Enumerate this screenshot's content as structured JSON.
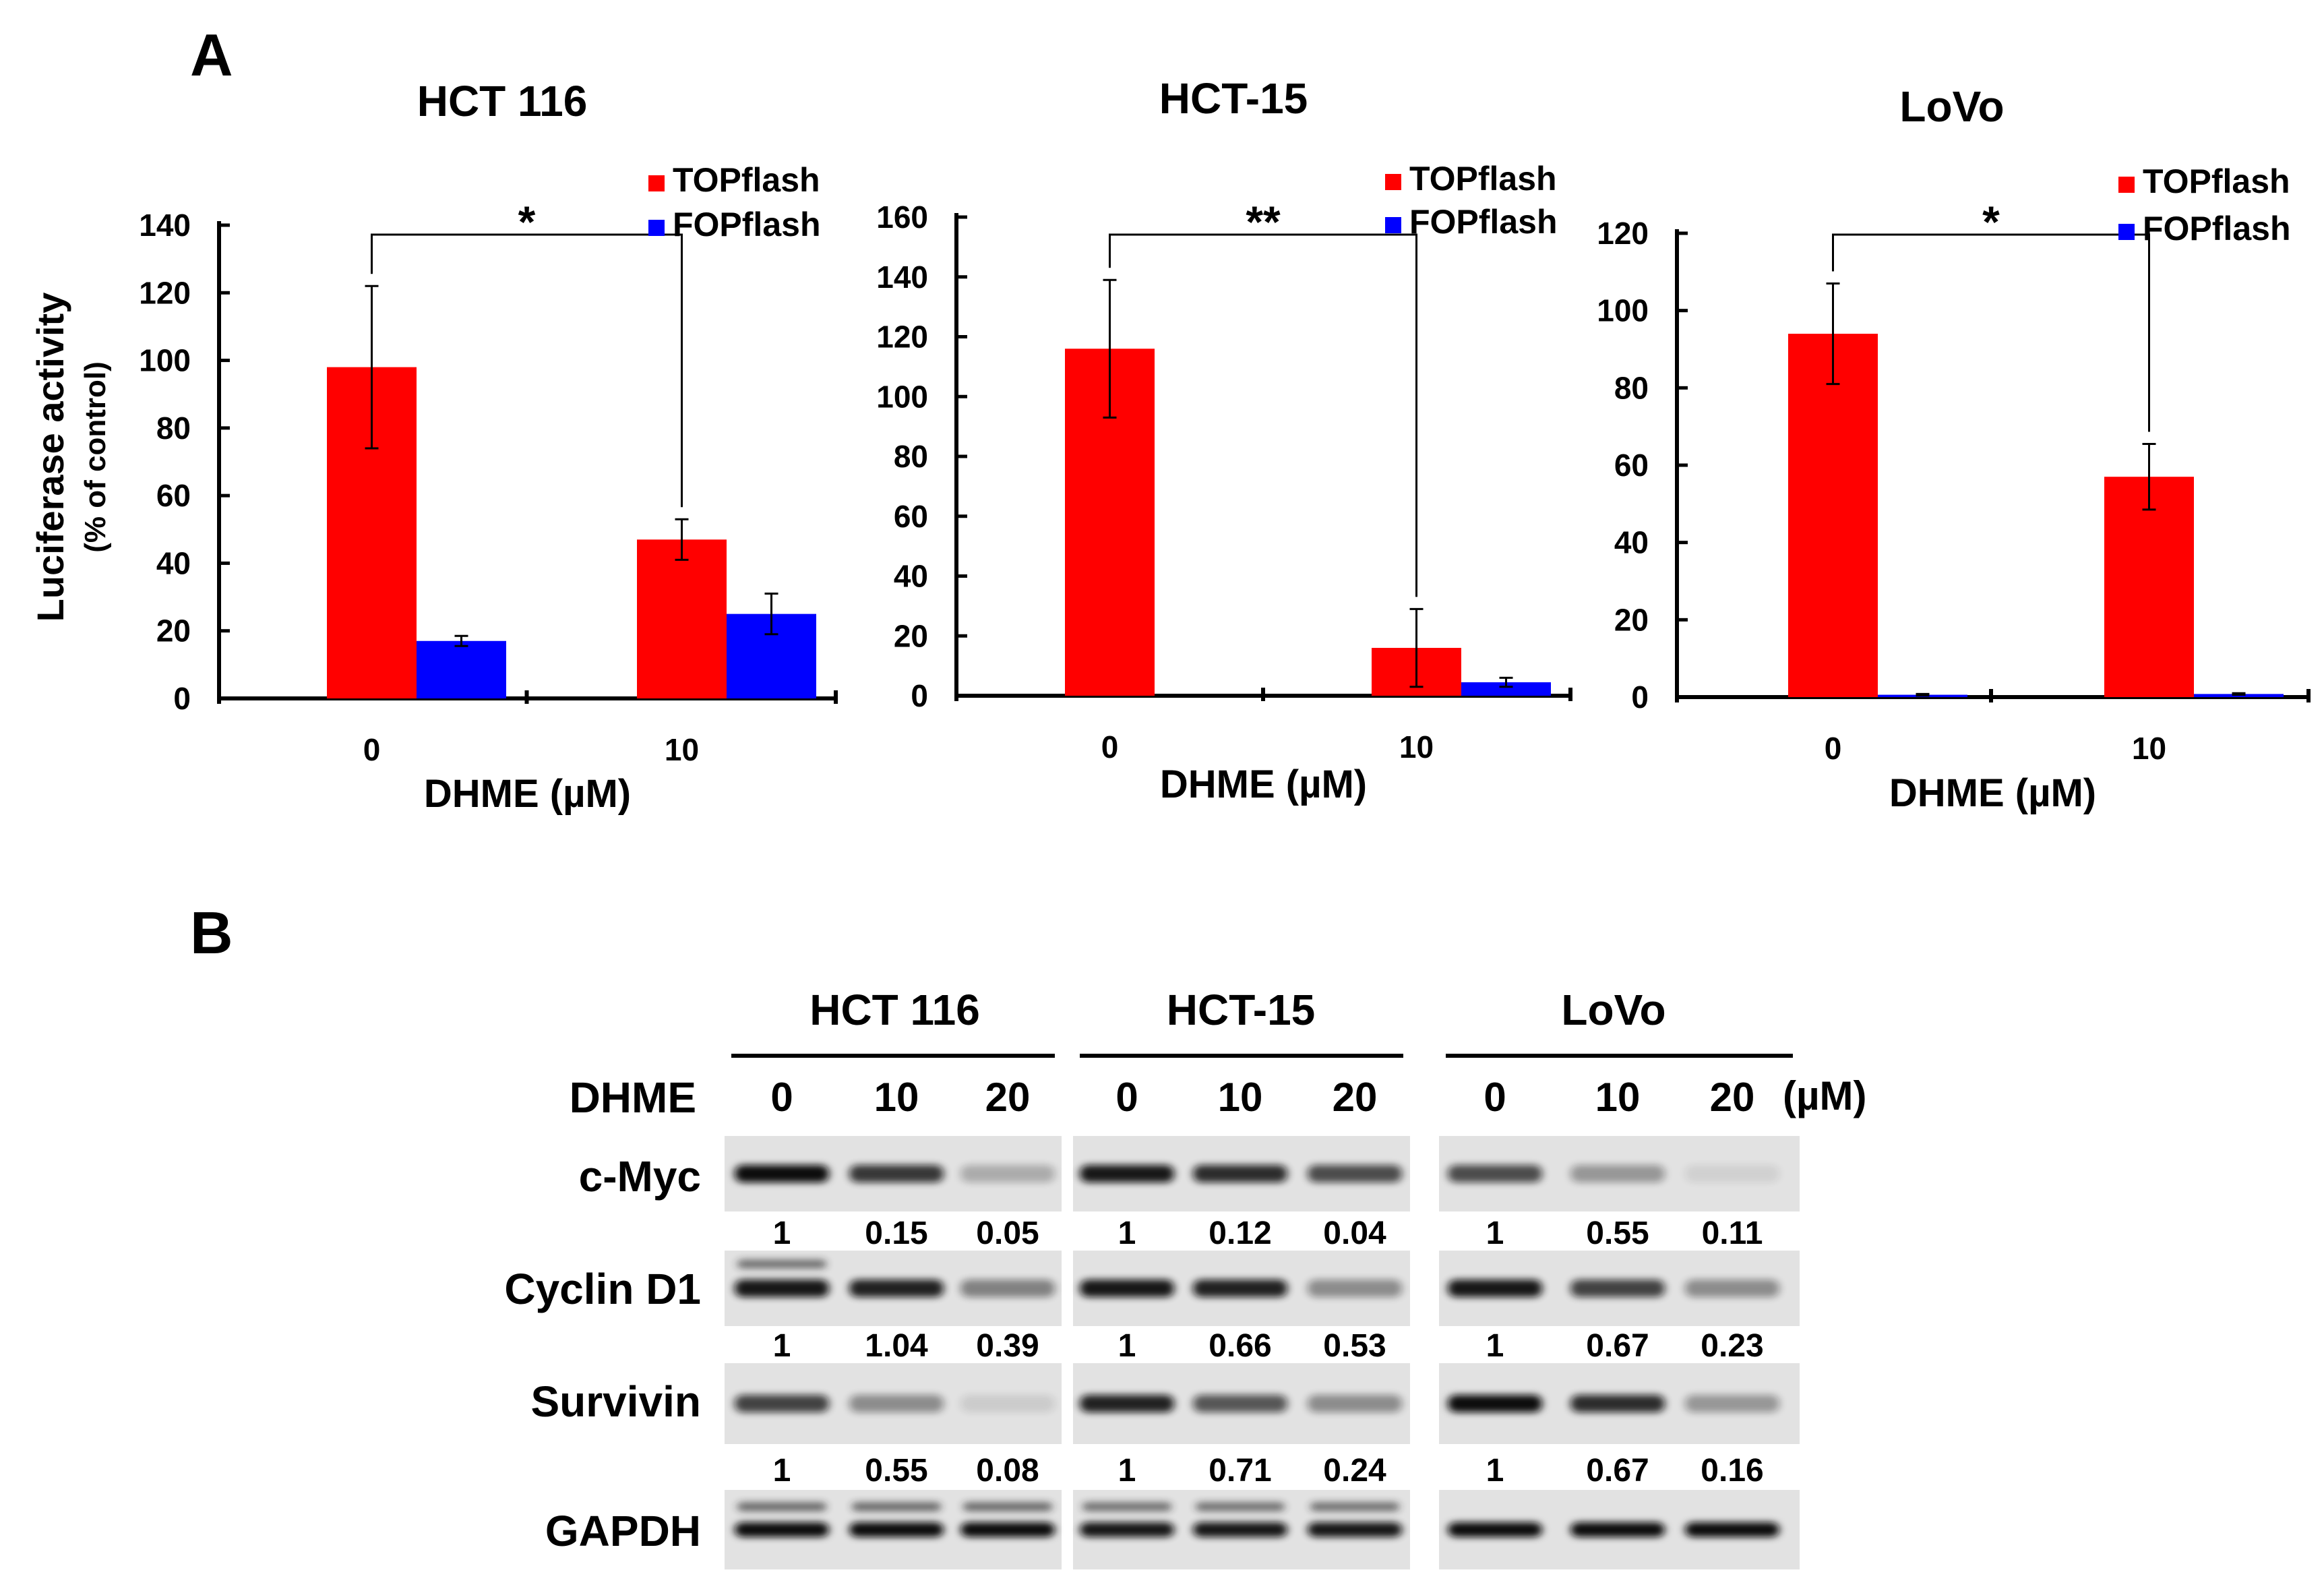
{
  "panel_a_label": "A",
  "panel_b_label": "B",
  "chart_data": [
    {
      "type": "bar",
      "title": "HCT 116",
      "categories": [
        "0",
        "10"
      ],
      "xlabel": "DHME (µM)",
      "ylabel": "Luciferase activity",
      "ylabel_sub": "(% of control)",
      "ylim": [
        0,
        140
      ],
      "yticks": [
        0,
        20,
        40,
        60,
        80,
        100,
        120,
        140
      ],
      "series": [
        {
          "name": "TOPflash",
          "color": "#ff0000",
          "values": [
            98,
            47
          ],
          "errors": [
            24,
            6
          ]
        },
        {
          "name": "FOPflash",
          "color": "#0000ff",
          "values": [
            17,
            25
          ],
          "errors": [
            1.5,
            6
          ]
        }
      ],
      "significance": "*",
      "legend": "top-right"
    },
    {
      "type": "bar",
      "title": "HCT-15",
      "categories": [
        "0",
        "10"
      ],
      "xlabel": "DHME (µM)",
      "ylabel": "",
      "ylim": [
        0,
        160
      ],
      "yticks": [
        0,
        20,
        40,
        60,
        80,
        100,
        120,
        140,
        160
      ],
      "series": [
        {
          "name": "TOPflash",
          "color": "#ff0000",
          "values": [
            116,
            16
          ],
          "errors": [
            23,
            13
          ]
        },
        {
          "name": "FOPflash",
          "color": "#0000ff",
          "values": [
            0,
            4.5
          ],
          "errors": [
            0,
            1.5
          ]
        }
      ],
      "significance": "**",
      "legend": "top-right"
    },
    {
      "type": "bar",
      "title": "LoVo",
      "categories": [
        "0",
        "10"
      ],
      "xlabel": "DHME (µM)",
      "ylabel": "",
      "ylim": [
        0,
        120
      ],
      "yticks": [
        0,
        20,
        40,
        60,
        80,
        100,
        120
      ],
      "series": [
        {
          "name": "TOPflash",
          "color": "#ff0000",
          "values": [
            94,
            57
          ],
          "errors": [
            13,
            8.5
          ]
        },
        {
          "name": "FOPflash",
          "color": "#0000ff",
          "values": [
            0.6,
            0.8
          ],
          "errors": [
            0.2,
            0.2
          ]
        }
      ],
      "significance": "*",
      "legend": "top-right"
    }
  ],
  "western": {
    "cell_lines": [
      "HCT 116",
      "HCT-15",
      "LoVo"
    ],
    "treatment_label": "DHME",
    "doses": [
      "0",
      "10",
      "20"
    ],
    "unit": "(µM)",
    "proteins": [
      {
        "name": "c-Myc",
        "values": [
          [
            "1",
            "0.15",
            "0.05"
          ],
          [
            "1",
            "0.12",
            "0.04"
          ],
          [
            "1",
            "0.55",
            "0.11"
          ]
        ]
      },
      {
        "name": "Cyclin D1",
        "values": [
          [
            "1",
            "1.04",
            "0.39"
          ],
          [
            "1",
            "0.66",
            "0.53"
          ],
          [
            "1",
            "0.67",
            "0.23"
          ]
        ]
      },
      {
        "name": "Survivin",
        "values": [
          [
            "1",
            "0.55",
            "0.08"
          ],
          [
            "1",
            "0.71",
            "0.24"
          ],
          [
            "1",
            "0.67",
            "0.16"
          ]
        ]
      },
      {
        "name": "GAPDH",
        "values": []
      }
    ]
  }
}
